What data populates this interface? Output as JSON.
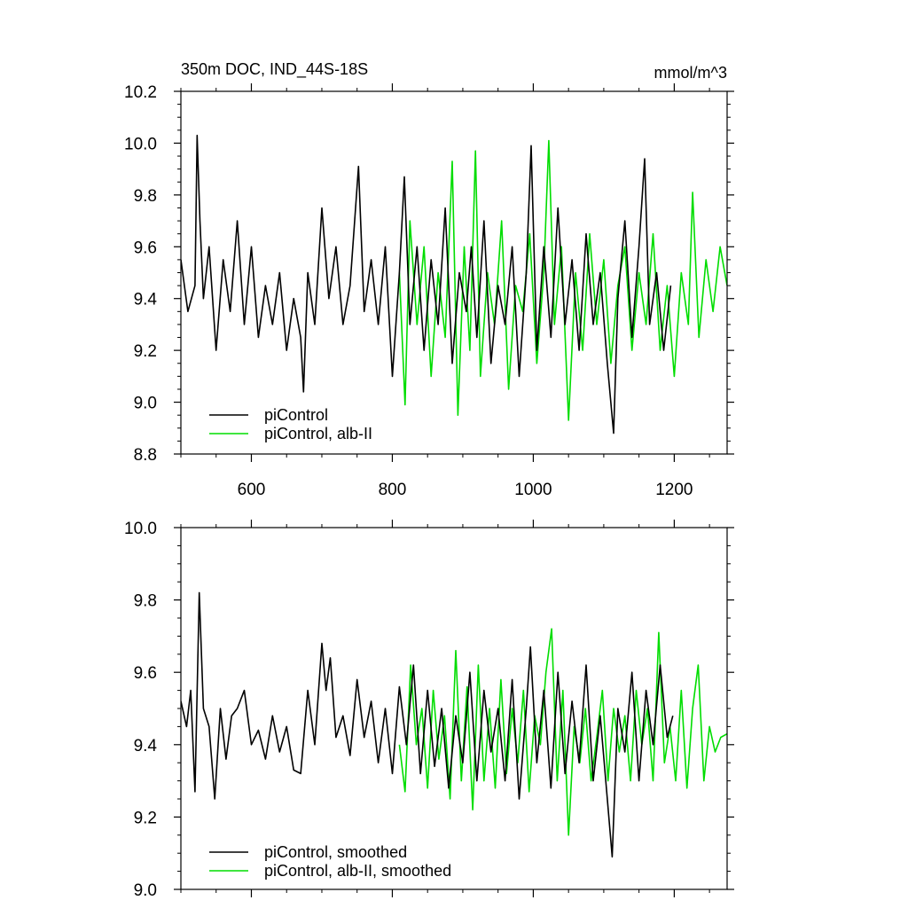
{
  "chart_data": [
    {
      "type": "line",
      "title": "350m DOC, IND_44S-18S",
      "units": "mmol/m^3",
      "xlim": [
        500,
        1275
      ],
      "ylim": [
        8.8,
        10.2
      ],
      "xticks": [
        600,
        800,
        1000,
        1200
      ],
      "xtick_labels": [
        "600",
        "800",
        "1000",
        "1200"
      ],
      "yticks": [
        8.8,
        9.0,
        9.2,
        9.4,
        9.6,
        9.8,
        10.0,
        10.2
      ],
      "ytick_labels": [
        "8.8",
        "9.0",
        "9.2",
        "9.4",
        "9.6",
        "9.8",
        "10.0",
        "10.2"
      ],
      "legend": "bottom-left",
      "grid": false,
      "series": [
        {
          "name": "piControl",
          "color": "#000000",
          "x": [
            500,
            510,
            520,
            523,
            527,
            532,
            540,
            550,
            560,
            570,
            580,
            590,
            600,
            610,
            620,
            630,
            640,
            650,
            660,
            670,
            674,
            680,
            690,
            700,
            710,
            720,
            730,
            740,
            752,
            760,
            770,
            780,
            790,
            800,
            810,
            817,
            825,
            835,
            845,
            855,
            865,
            875,
            885,
            895,
            905,
            912,
            920,
            930,
            940,
            950,
            960,
            970,
            980,
            990,
            997,
            1005,
            1015,
            1025,
            1035,
            1045,
            1055,
            1065,
            1075,
            1085,
            1095,
            1105,
            1114,
            1120,
            1130,
            1140,
            1150,
            1158,
            1165,
            1175,
            1185,
            1195
          ],
          "y": [
            9.55,
            9.35,
            9.45,
            10.03,
            9.7,
            9.4,
            9.6,
            9.2,
            9.55,
            9.35,
            9.7,
            9.3,
            9.6,
            9.25,
            9.45,
            9.3,
            9.5,
            9.2,
            9.4,
            9.25,
            9.04,
            9.5,
            9.3,
            9.75,
            9.4,
            9.6,
            9.3,
            9.45,
            9.91,
            9.35,
            9.55,
            9.3,
            9.6,
            9.1,
            9.5,
            9.87,
            9.3,
            9.6,
            9.2,
            9.55,
            9.3,
            9.75,
            9.15,
            9.5,
            9.35,
            9.6,
            9.25,
            9.7,
            9.15,
            9.45,
            9.3,
            9.6,
            9.1,
            9.5,
            9.99,
            9.2,
            9.6,
            9.25,
            9.75,
            9.3,
            9.55,
            9.2,
            9.65,
            9.3,
            9.5,
            9.15,
            8.88,
            9.4,
            9.7,
            9.25,
            9.6,
            9.94,
            9.3,
            9.5,
            9.2,
            9.45
          ]
        },
        {
          "name": "piControl, alb-II",
          "color": "#00dd00",
          "x": [
            810,
            818,
            825,
            835,
            845,
            855,
            865,
            875,
            885,
            893,
            902,
            910,
            918,
            925,
            935,
            945,
            955,
            965,
            975,
            985,
            995,
            1005,
            1015,
            1022,
            1030,
            1040,
            1050,
            1060,
            1070,
            1080,
            1090,
            1100,
            1110,
            1120,
            1130,
            1140,
            1150,
            1160,
            1170,
            1180,
            1190,
            1200,
            1210,
            1220,
            1226,
            1235,
            1245,
            1255,
            1265,
            1275
          ],
          "y": [
            9.5,
            8.99,
            9.7,
            9.3,
            9.6,
            9.1,
            9.5,
            9.25,
            9.93,
            8.95,
            9.6,
            9.2,
            9.97,
            9.1,
            9.5,
            9.3,
            9.7,
            9.05,
            9.45,
            9.35,
            9.65,
            9.15,
            9.5,
            10.01,
            9.3,
            9.6,
            8.93,
            9.5,
            9.2,
            9.65,
            9.3,
            9.55,
            9.15,
            9.45,
            9.6,
            9.2,
            9.5,
            9.3,
            9.65,
            9.2,
            9.45,
            9.1,
            9.5,
            9.3,
            9.81,
            9.25,
            9.55,
            9.35,
            9.6,
            9.45
          ]
        }
      ]
    },
    {
      "type": "line",
      "xlim": [
        500,
        1275
      ],
      "ylim": [
        9.0,
        10.0
      ],
      "yticks": [
        9.0,
        9.2,
        9.4,
        9.6,
        9.8,
        10.0
      ],
      "ytick_labels": [
        "9.0",
        "9.2",
        "9.4",
        "9.6",
        "9.8",
        "10.0"
      ],
      "legend": "bottom-left",
      "grid": false,
      "series": [
        {
          "name": "piControl, smoothed",
          "color": "#000000",
          "x": [
            500,
            508,
            514,
            520,
            526,
            532,
            540,
            548,
            556,
            564,
            572,
            580,
            590,
            600,
            610,
            620,
            630,
            640,
            650,
            660,
            670,
            680,
            690,
            700,
            706,
            712,
            720,
            730,
            740,
            750,
            760,
            770,
            780,
            790,
            800,
            810,
            820,
            830,
            840,
            850,
            860,
            870,
            880,
            890,
            900,
            910,
            920,
            930,
            940,
            950,
            960,
            970,
            980,
            990,
            996,
            1005,
            1015,
            1025,
            1035,
            1045,
            1055,
            1065,
            1075,
            1085,
            1095,
            1105,
            1112,
            1120,
            1130,
            1140,
            1150,
            1160,
            1170,
            1180,
            1190,
            1198
          ],
          "y": [
            9.52,
            9.45,
            9.55,
            9.27,
            9.82,
            9.5,
            9.45,
            9.25,
            9.5,
            9.36,
            9.48,
            9.5,
            9.55,
            9.4,
            9.44,
            9.36,
            9.48,
            9.38,
            9.45,
            9.33,
            9.32,
            9.55,
            9.4,
            9.68,
            9.55,
            9.64,
            9.42,
            9.48,
            9.37,
            9.58,
            9.42,
            9.52,
            9.35,
            9.5,
            9.32,
            9.56,
            9.4,
            9.62,
            9.32,
            9.55,
            9.34,
            9.5,
            9.28,
            9.48,
            9.35,
            9.6,
            9.3,
            9.55,
            9.38,
            9.5,
            9.3,
            9.58,
            9.25,
            9.5,
            9.67,
            9.35,
            9.55,
            9.28,
            9.6,
            9.32,
            9.52,
            9.35,
            9.62,
            9.3,
            9.48,
            9.25,
            9.09,
            9.5,
            9.38,
            9.6,
            9.3,
            9.55,
            9.4,
            9.62,
            9.42,
            9.48
          ]
        },
        {
          "name": "piControl, alb-II, smoothed",
          "color": "#00dd00",
          "x": [
            810,
            818,
            826,
            834,
            842,
            850,
            858,
            866,
            874,
            882,
            890,
            898,
            906,
            914,
            922,
            930,
            938,
            946,
            954,
            962,
            970,
            978,
            986,
            994,
            1002,
            1010,
            1018,
            1026,
            1034,
            1042,
            1050,
            1058,
            1066,
            1074,
            1082,
            1090,
            1098,
            1106,
            1114,
            1122,
            1130,
            1138,
            1146,
            1154,
            1162,
            1170,
            1178,
            1186,
            1194,
            1202,
            1210,
            1218,
            1226,
            1234,
            1242,
            1250,
            1258,
            1266,
            1275
          ],
          "y": [
            9.4,
            9.27,
            9.62,
            9.4,
            9.5,
            9.28,
            9.55,
            9.36,
            9.48,
            9.25,
            9.66,
            9.3,
            9.56,
            9.22,
            9.62,
            9.3,
            9.5,
            9.28,
            9.58,
            9.32,
            9.5,
            9.35,
            9.55,
            9.27,
            9.48,
            9.4,
            9.6,
            9.72,
            9.3,
            9.55,
            9.15,
            9.45,
            9.35,
            9.5,
            9.3,
            9.42,
            9.55,
            9.3,
            9.5,
            9.38,
            9.48,
            9.3,
            9.55,
            9.4,
            9.5,
            9.3,
            9.71,
            9.35,
            9.45,
            9.3,
            9.55,
            9.28,
            9.5,
            9.62,
            9.3,
            9.45,
            9.38,
            9.42,
            9.43
          ]
        }
      ]
    }
  ]
}
